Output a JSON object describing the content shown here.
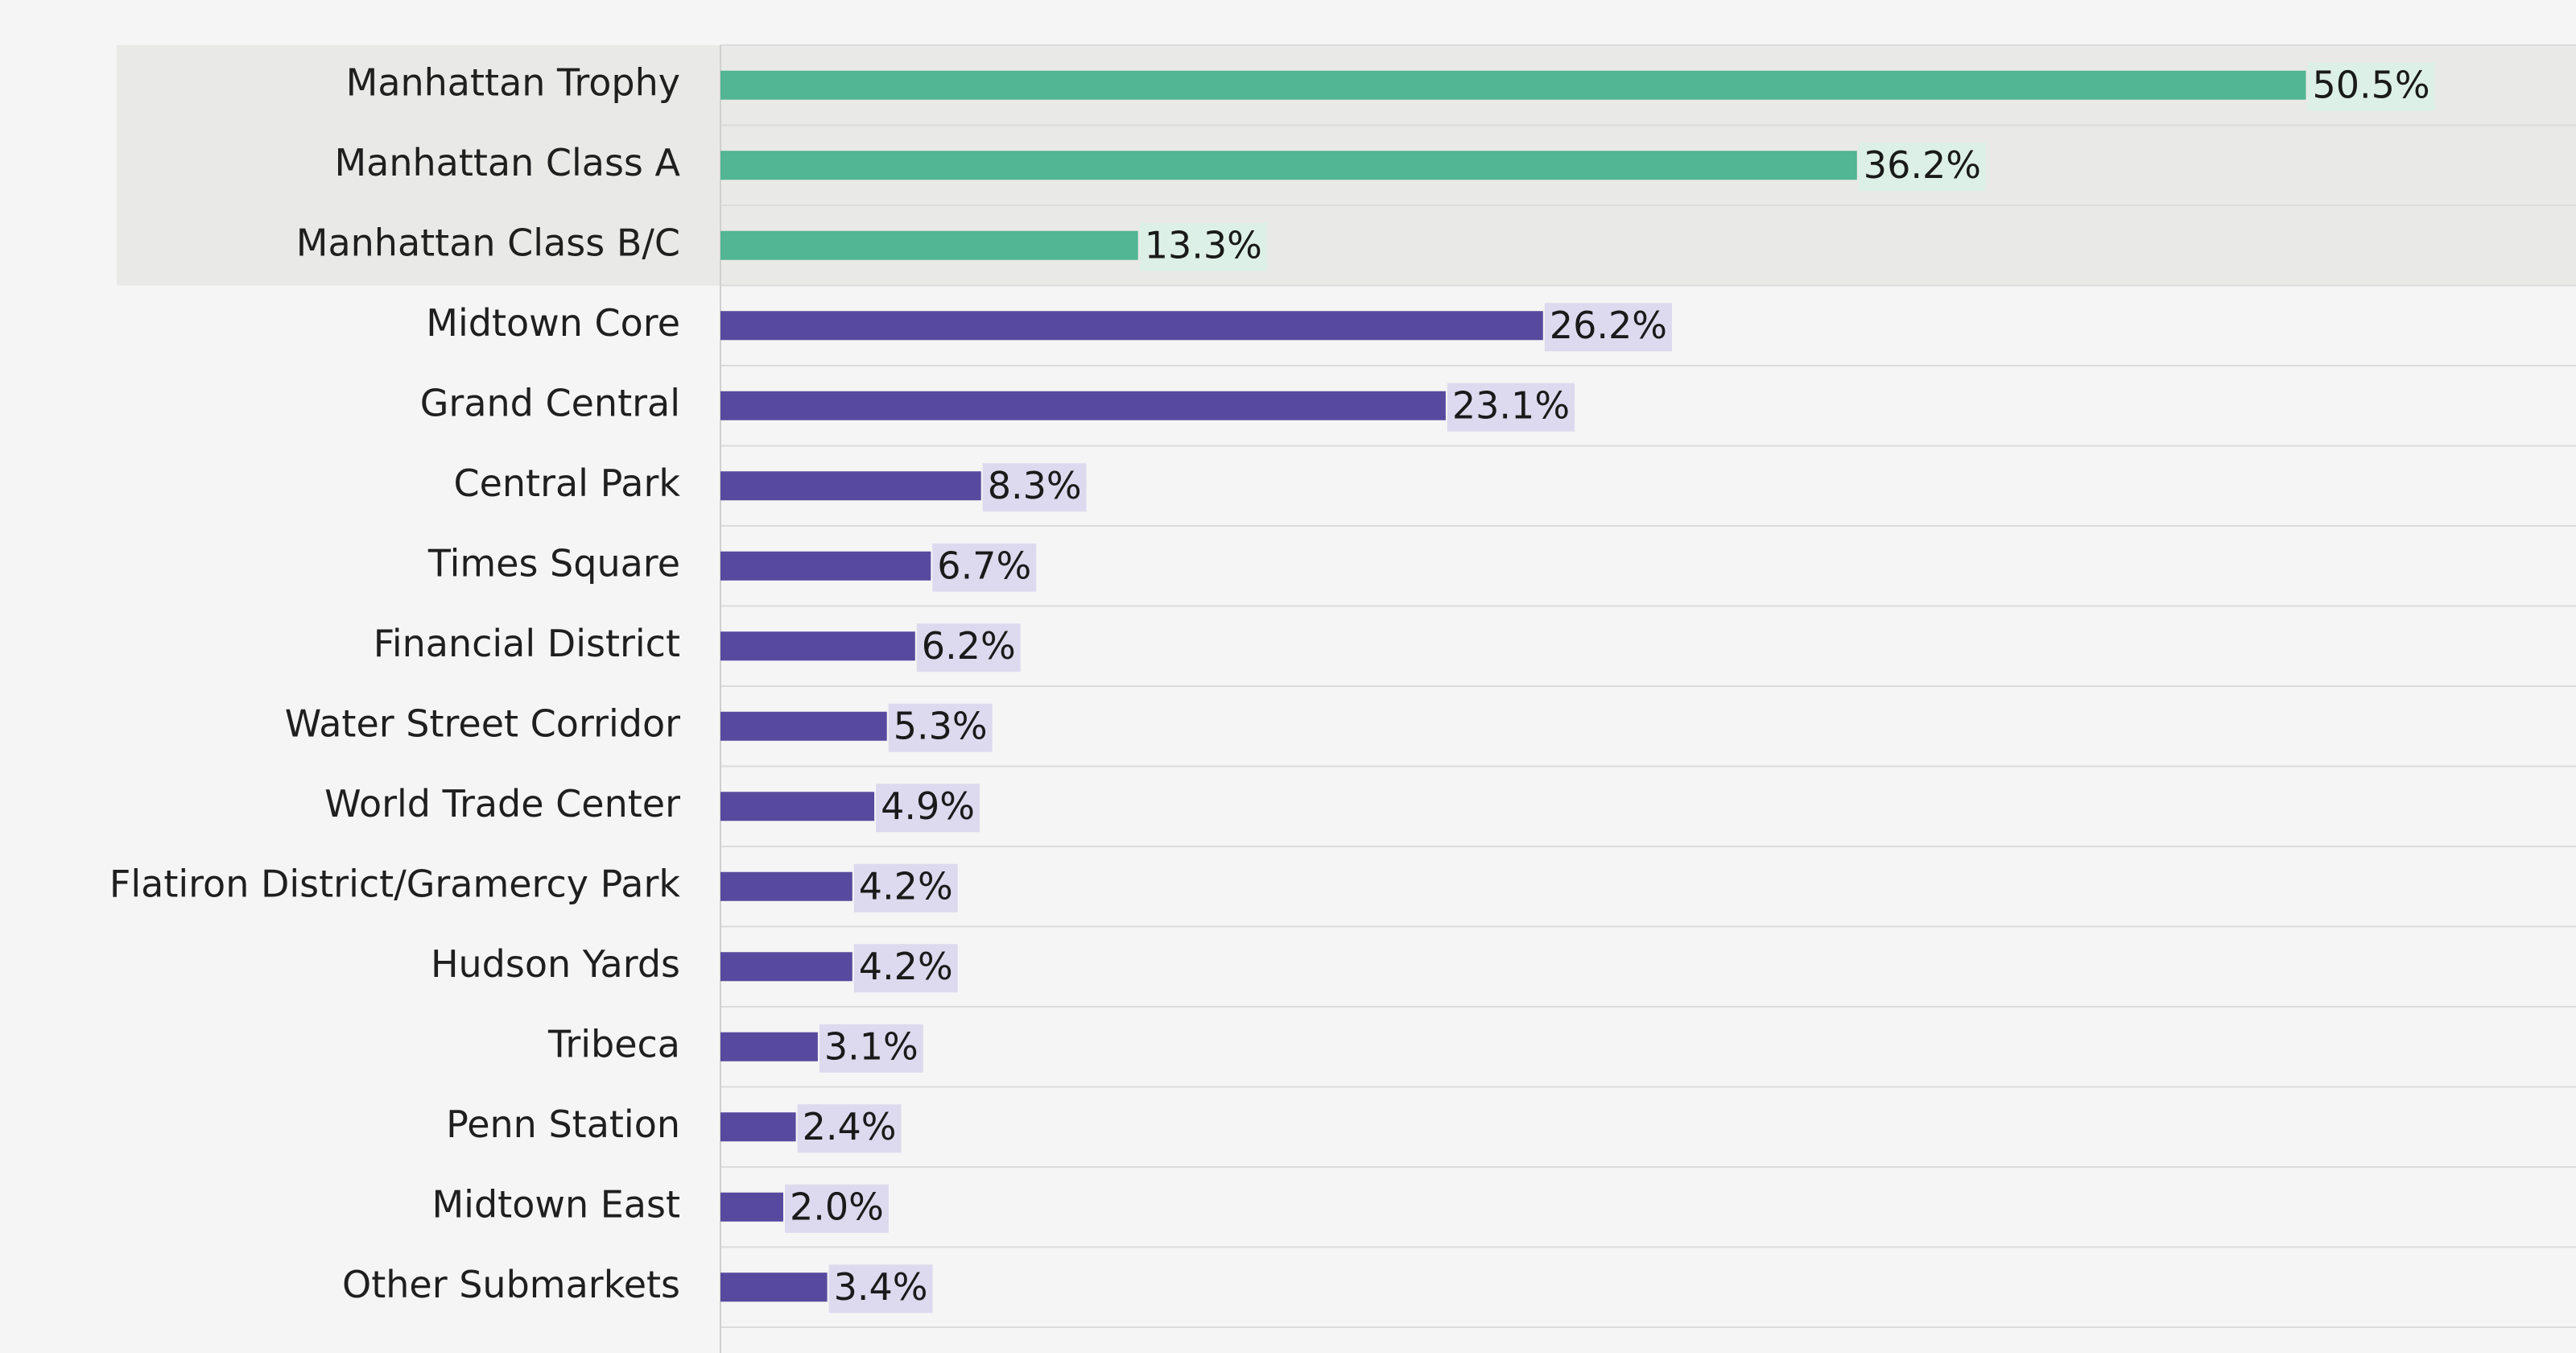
{
  "chart_data": {
    "type": "bar",
    "orientation": "horizontal",
    "title": "",
    "xlabel": "",
    "ylabel": "",
    "xlim": [
      0,
      55
    ],
    "grid": "horizontal row separators",
    "value_format": "percent, one decimal",
    "highlighted_group_rows": 3,
    "colors": {
      "background": "#f5f5f5",
      "highlight_band": "#e9e9e7",
      "grid": "#dcdcdc",
      "axis": "#d0d0d0",
      "group_bar": "#52b594",
      "group_label_bg": "#ddf0e8",
      "submarket_bar": "#574a9e",
      "submarket_label_bg": "#ddd9ee",
      "text": "#1f1f1f"
    },
    "categories": [
      "Manhattan Trophy",
      "Manhattan Class A",
      "Manhattan Class B/C",
      "Midtown Core",
      "Grand Central",
      "Central Park",
      "Times Square",
      "Financial District",
      "Water Street Corridor",
      "World Trade Center",
      "Flatiron District/Gramercy Park",
      "Hudson Yards",
      "Tribeca",
      "Penn Station",
      "Midtown East",
      "Other Submarkets"
    ],
    "values": [
      50.5,
      36.2,
      13.3,
      26.2,
      23.1,
      8.3,
      6.7,
      6.2,
      5.3,
      4.9,
      4.2,
      4.2,
      3.1,
      2.4,
      2.0,
      3.4
    ],
    "value_labels": [
      "50.5%",
      "36.2%",
      "13.3%",
      "26.2%",
      "23.1%",
      "8.3%",
      "6.7%",
      "6.2%",
      "5.3%",
      "4.9%",
      "4.2%",
      "4.2%",
      "3.1%",
      "2.4%",
      "2.0%",
      "3.4%"
    ]
  }
}
